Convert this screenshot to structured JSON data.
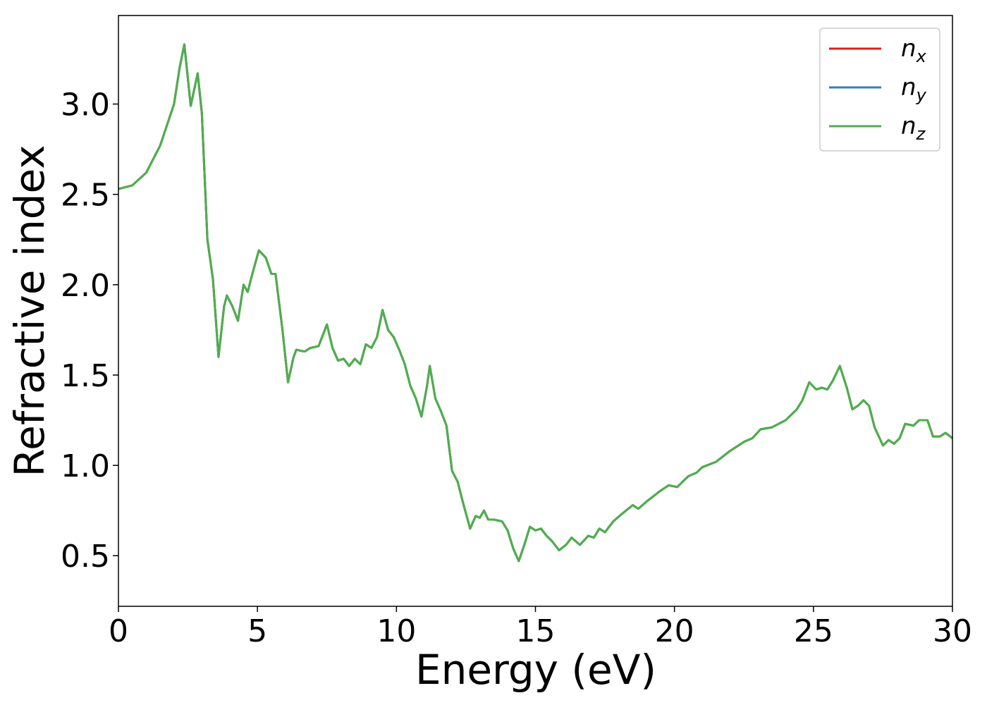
{
  "chart_data": {
    "type": "line",
    "xlabel": "Energy (eV)",
    "ylabel": "Refractive index",
    "x": [
      0,
      0.5,
      1.0,
      1.5,
      2.0,
      2.2,
      2.37,
      2.6,
      2.85,
      3.0,
      3.2,
      3.4,
      3.6,
      3.8,
      3.9,
      4.1,
      4.3,
      4.5,
      4.65,
      4.8,
      5.05,
      5.3,
      5.5,
      5.65,
      5.9,
      6.1,
      6.3,
      6.4,
      6.7,
      6.9,
      7.2,
      7.5,
      7.7,
      7.9,
      8.1,
      8.3,
      8.5,
      8.7,
      8.9,
      9.1,
      9.3,
      9.5,
      9.7,
      9.9,
      10.1,
      10.3,
      10.5,
      10.7,
      10.9,
      11.1,
      11.2,
      11.4,
      11.6,
      11.8,
      12.0,
      12.2,
      12.4,
      12.65,
      12.85,
      13.0,
      13.15,
      13.3,
      13.5,
      13.8,
      14.0,
      14.2,
      14.4,
      14.6,
      14.8,
      15.0,
      15.2,
      15.4,
      15.6,
      15.85,
      16.1,
      16.3,
      16.6,
      16.9,
      17.1,
      17.3,
      17.5,
      17.8,
      18.1,
      18.5,
      18.7,
      19.0,
      19.5,
      19.8,
      20.1,
      20.5,
      20.8,
      21.0,
      21.5,
      22.0,
      22.5,
      22.8,
      23.1,
      23.5,
      24.0,
      24.4,
      24.6,
      24.85,
      25.1,
      25.3,
      25.5,
      25.7,
      25.95,
      26.2,
      26.4,
      26.6,
      26.8,
      27.0,
      27.2,
      27.5,
      27.7,
      27.9,
      28.1,
      28.3,
      28.6,
      28.8,
      29.1,
      29.3,
      29.55,
      29.75,
      30.0
    ],
    "series": [
      {
        "name": "nx",
        "color": "#e41a1c",
        "values": [
          2.53,
          2.55,
          2.62,
          2.77,
          3.0,
          3.2,
          3.33,
          2.99,
          3.17,
          2.95,
          2.25,
          2.03,
          1.6,
          1.88,
          1.94,
          1.88,
          1.8,
          2.0,
          1.96,
          2.05,
          2.19,
          2.15,
          2.06,
          2.06,
          1.75,
          1.46,
          1.6,
          1.64,
          1.63,
          1.65,
          1.66,
          1.78,
          1.65,
          1.58,
          1.59,
          1.55,
          1.59,
          1.56,
          1.67,
          1.65,
          1.71,
          1.86,
          1.75,
          1.71,
          1.64,
          1.56,
          1.44,
          1.37,
          1.27,
          1.44,
          1.55,
          1.37,
          1.3,
          1.22,
          0.97,
          0.91,
          0.79,
          0.65,
          0.72,
          0.71,
          0.75,
          0.7,
          0.7,
          0.69,
          0.64,
          0.54,
          0.47,
          0.56,
          0.66,
          0.64,
          0.65,
          0.61,
          0.58,
          0.53,
          0.56,
          0.6,
          0.56,
          0.61,
          0.6,
          0.65,
          0.63,
          0.69,
          0.73,
          0.78,
          0.76,
          0.8,
          0.86,
          0.89,
          0.88,
          0.94,
          0.96,
          0.99,
          1.02,
          1.08,
          1.13,
          1.15,
          1.2,
          1.21,
          1.25,
          1.31,
          1.36,
          1.46,
          1.42,
          1.43,
          1.42,
          1.47,
          1.55,
          1.43,
          1.31,
          1.33,
          1.36,
          1.33,
          1.21,
          1.11,
          1.14,
          1.12,
          1.15,
          1.23,
          1.22,
          1.25,
          1.25,
          1.16,
          1.16,
          1.18,
          1.15
        ]
      },
      {
        "name": "ny",
        "color": "#377eb8",
        "values": [
          2.53,
          2.55,
          2.62,
          2.77,
          3.0,
          3.2,
          3.33,
          2.99,
          3.17,
          2.95,
          2.25,
          2.03,
          1.6,
          1.88,
          1.94,
          1.88,
          1.8,
          2.0,
          1.96,
          2.05,
          2.19,
          2.15,
          2.06,
          2.06,
          1.75,
          1.46,
          1.6,
          1.64,
          1.63,
          1.65,
          1.66,
          1.78,
          1.65,
          1.58,
          1.59,
          1.55,
          1.59,
          1.56,
          1.67,
          1.65,
          1.71,
          1.86,
          1.75,
          1.71,
          1.64,
          1.56,
          1.44,
          1.37,
          1.27,
          1.44,
          1.55,
          1.37,
          1.3,
          1.22,
          0.97,
          0.91,
          0.79,
          0.65,
          0.72,
          0.71,
          0.75,
          0.7,
          0.7,
          0.69,
          0.64,
          0.54,
          0.47,
          0.56,
          0.66,
          0.64,
          0.65,
          0.61,
          0.58,
          0.53,
          0.56,
          0.6,
          0.56,
          0.61,
          0.6,
          0.65,
          0.63,
          0.69,
          0.73,
          0.78,
          0.76,
          0.8,
          0.86,
          0.89,
          0.88,
          0.94,
          0.96,
          0.99,
          1.02,
          1.08,
          1.13,
          1.15,
          1.2,
          1.21,
          1.25,
          1.31,
          1.36,
          1.46,
          1.42,
          1.43,
          1.42,
          1.47,
          1.55,
          1.43,
          1.31,
          1.33,
          1.36,
          1.33,
          1.21,
          1.11,
          1.14,
          1.12,
          1.15,
          1.23,
          1.22,
          1.25,
          1.25,
          1.16,
          1.16,
          1.18,
          1.15
        ]
      },
      {
        "name": "nz",
        "color": "#4daf4a",
        "values": [
          2.53,
          2.55,
          2.62,
          2.77,
          3.0,
          3.2,
          3.33,
          2.99,
          3.17,
          2.95,
          2.25,
          2.03,
          1.6,
          1.88,
          1.94,
          1.88,
          1.8,
          2.0,
          1.96,
          2.05,
          2.19,
          2.15,
          2.06,
          2.06,
          1.75,
          1.46,
          1.6,
          1.64,
          1.63,
          1.65,
          1.66,
          1.78,
          1.65,
          1.58,
          1.59,
          1.55,
          1.59,
          1.56,
          1.67,
          1.65,
          1.71,
          1.86,
          1.75,
          1.71,
          1.64,
          1.56,
          1.44,
          1.37,
          1.27,
          1.44,
          1.55,
          1.37,
          1.3,
          1.22,
          0.97,
          0.91,
          0.79,
          0.65,
          0.72,
          0.71,
          0.75,
          0.7,
          0.7,
          0.69,
          0.64,
          0.54,
          0.47,
          0.56,
          0.66,
          0.64,
          0.65,
          0.61,
          0.58,
          0.53,
          0.56,
          0.6,
          0.56,
          0.61,
          0.6,
          0.65,
          0.63,
          0.69,
          0.73,
          0.78,
          0.76,
          0.8,
          0.86,
          0.89,
          0.88,
          0.94,
          0.96,
          0.99,
          1.02,
          1.08,
          1.13,
          1.15,
          1.2,
          1.21,
          1.25,
          1.31,
          1.36,
          1.46,
          1.42,
          1.43,
          1.42,
          1.47,
          1.55,
          1.43,
          1.31,
          1.33,
          1.36,
          1.33,
          1.21,
          1.11,
          1.14,
          1.12,
          1.15,
          1.23,
          1.22,
          1.25,
          1.25,
          1.16,
          1.16,
          1.18,
          1.15
        ]
      }
    ],
    "xlim": [
      0,
      30
    ],
    "xticks": [
      0,
      5,
      10,
      15,
      20,
      25,
      30
    ],
    "ylim": [
      0.22,
      3.49
    ],
    "yticks": [
      {
        "value": 0.5,
        "label": "0.5"
      },
      {
        "value": 1.0,
        "label": "1.0"
      },
      {
        "value": 1.5,
        "label": "1.5"
      },
      {
        "value": 2.0,
        "label": "2.0"
      },
      {
        "value": 2.5,
        "label": "2.5"
      },
      {
        "value": 3.0,
        "label": "3.0"
      }
    ],
    "grid": false,
    "legend": "upper right"
  }
}
